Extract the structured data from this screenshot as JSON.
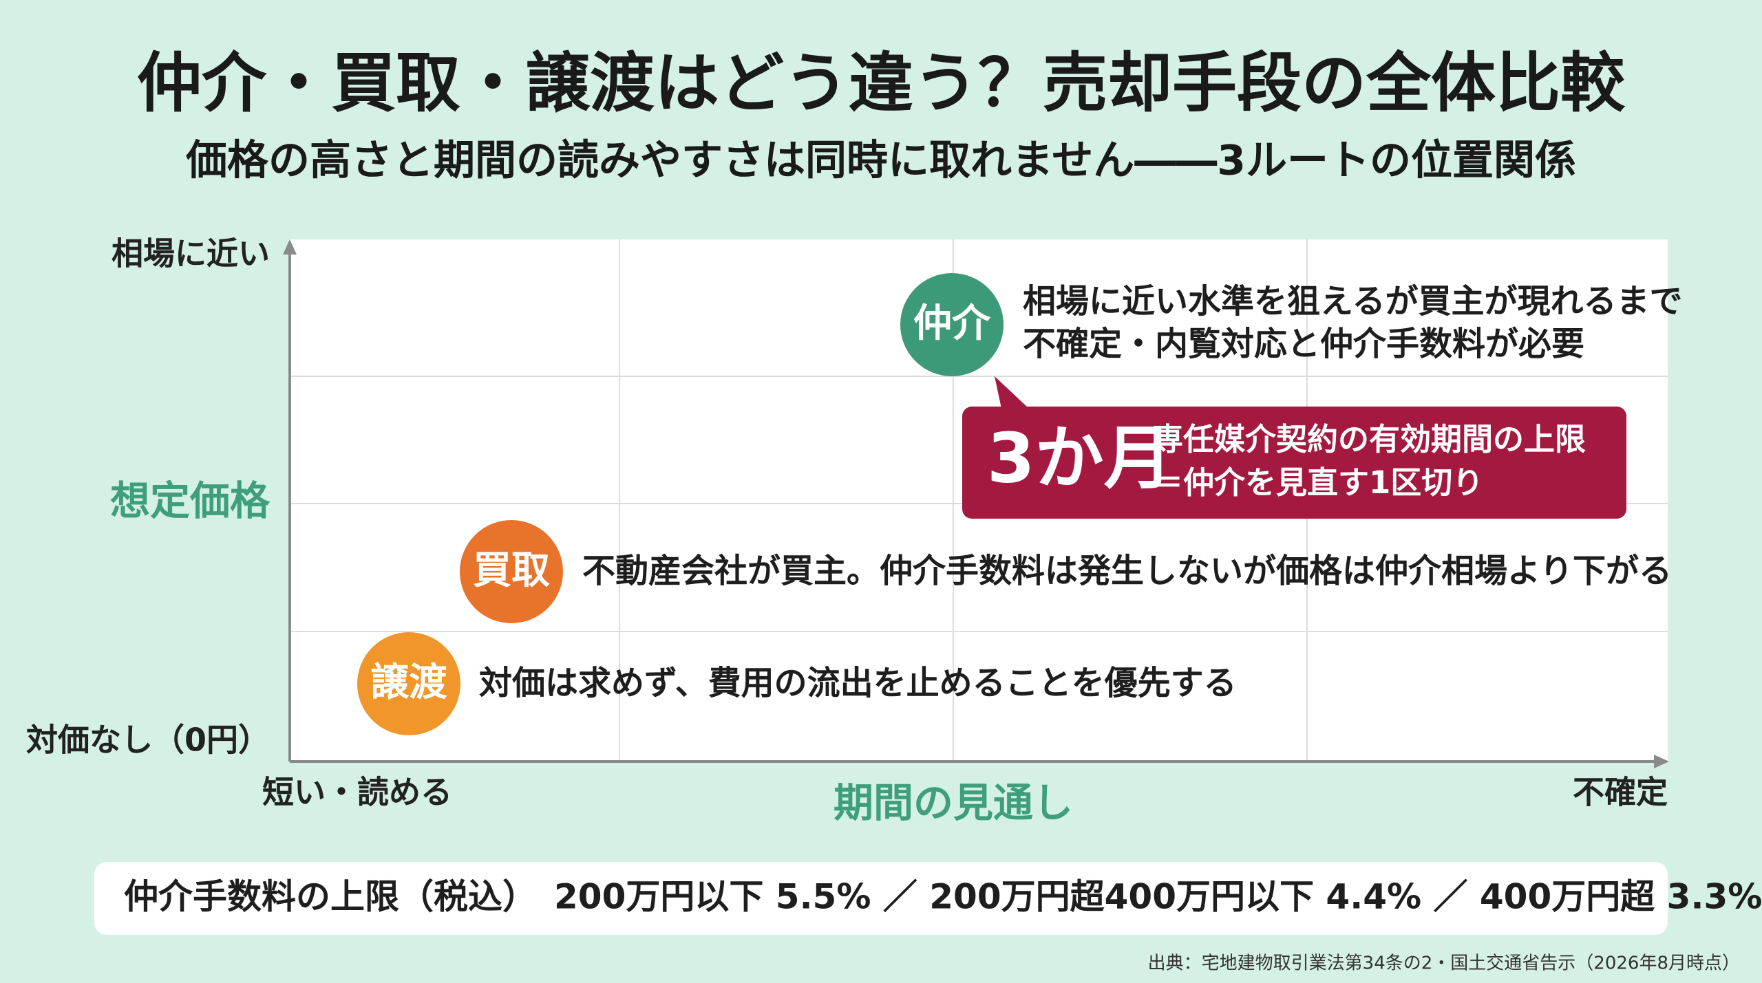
{
  "title": "仲介・買取・譲渡はどう違う？売却手段の全体比較",
  "subtitle": "価格の高さと期間の読みやすさは同時に取れません――3ルートの位置関係",
  "y_axis": {
    "top": "相場に近い",
    "middle": "想定価格",
    "bottom": "対価なし（0円）"
  },
  "x_axis": {
    "left": "短い・読める",
    "middle": "期間の見通し",
    "right": "不確定"
  },
  "routes": [
    {
      "label": "仲介",
      "lines": [
        "相場に近い水準を狙えるが買主が現れるまで",
        "不確定・内覧対応と仲介手数料が必要"
      ]
    },
    {
      "label": "買取",
      "lines": [
        "不動産会社が買主。仲介手数料は発生しないが価格は仲介相場より下がる"
      ]
    },
    {
      "label": "譲渡",
      "lines": [
        "対価は求めず、費用の流出を止めることを優先する"
      ]
    }
  ],
  "callout": {
    "headline": "3か月",
    "lines": [
      "専任媒介契約の有効期間の上限",
      "＝仲介を見直す1区切り"
    ]
  },
  "footer": "仲介手数料の上限（税込）　200万円以下 5.5% ／ 200万円超400万円以下 4.4% ／ 400万円超 3.3%",
  "source": "出典：宅地建物取引業法第34条の2・国土交通省告示（2026年8月時点）"
}
